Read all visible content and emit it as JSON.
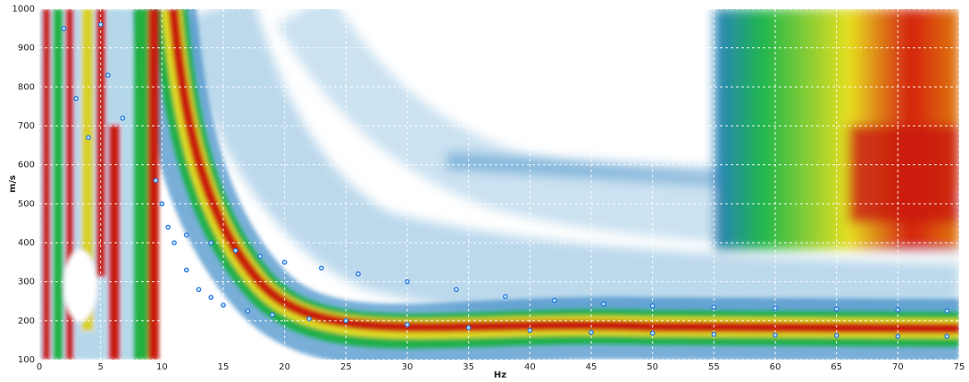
{
  "chart_data": {
    "type": "scatter",
    "xlabel": "Hz",
    "ylabel": "m/s",
    "xlim": [
      0,
      75
    ],
    "ylim": [
      100,
      1000
    ],
    "xticks": [
      0,
      5,
      10,
      15,
      20,
      25,
      30,
      35,
      40,
      45,
      50,
      55,
      60,
      65,
      70,
      75
    ],
    "yticks": [
      100,
      200,
      300,
      400,
      500,
      600,
      700,
      800,
      900,
      1000
    ],
    "grid": true,
    "series": [
      {
        "color": "#1f6fe0",
        "x": [
          9.5,
          10,
          11,
          12,
          13,
          14,
          15,
          17,
          19,
          22,
          25,
          30,
          35,
          40,
          45,
          50,
          55,
          60,
          65,
          70,
          74
        ],
        "values": [
          560,
          500,
          400,
          330,
          280,
          260,
          240,
          225,
          215,
          205,
          200,
          190,
          182,
          175,
          170,
          168,
          165,
          163,
          162,
          160,
          160
        ]
      },
      {
        "color": "#1f6fe0",
        "x": [
          10.5,
          12,
          14,
          16,
          18,
          20,
          23,
          26,
          30,
          34,
          38,
          42,
          46,
          50,
          55,
          60,
          65,
          70,
          74
        ],
        "values": [
          440,
          420,
          400,
          380,
          365,
          350,
          335,
          320,
          300,
          280,
          262,
          252,
          243,
          238,
          235,
          232,
          230,
          228,
          225
        ]
      },
      {
        "color": "#1f6fe0",
        "x": [
          2,
          3,
          4,
          5,
          5.6,
          6.8
        ],
        "values": [
          950,
          770,
          670,
          960,
          830,
          720
        ]
      }
    ]
  }
}
